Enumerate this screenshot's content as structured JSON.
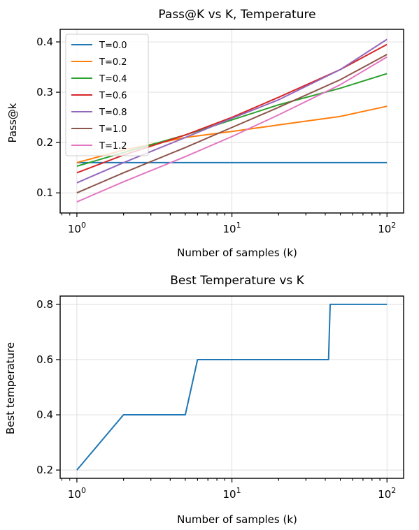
{
  "chart_data": [
    {
      "type": "line",
      "title": "Pass@K vs K, Temperature",
      "xlabel": "Number of samples (k)",
      "ylabel": "Pass@k",
      "xscale": "log",
      "xlim": [
        0.78,
        128
      ],
      "ylim": [
        0.06,
        0.425
      ],
      "grid": true,
      "legend_position": "top-left",
      "x_ticks": [
        {
          "base": "10",
          "exp": "0",
          "value": 1
        },
        {
          "base": "10",
          "exp": "1",
          "value": 10
        },
        {
          "base": "10",
          "exp": "2",
          "value": 100
        }
      ],
      "y_ticks": [
        {
          "label": "0.1",
          "value": 0.1
        },
        {
          "label": "0.2",
          "value": 0.2
        },
        {
          "label": "0.3",
          "value": 0.3
        },
        {
          "label": "0.4",
          "value": 0.4
        }
      ],
      "x": [
        1,
        2,
        5,
        10,
        20,
        50,
        100
      ],
      "series": [
        {
          "name": "T=0.0",
          "color": "#1f77b4",
          "values": [
            0.16,
            0.16,
            0.16,
            0.16,
            0.16,
            0.16,
            0.16
          ]
        },
        {
          "name": "T=0.2",
          "color": "#ff7f0e",
          "values": [
            0.16,
            0.185,
            0.21,
            0.222,
            0.235,
            0.252,
            0.272
          ]
        },
        {
          "name": "T=0.4",
          "color": "#2ca02c",
          "values": [
            0.153,
            0.18,
            0.215,
            0.245,
            0.275,
            0.308,
            0.337
          ]
        },
        {
          "name": "T=0.6",
          "color": "#d62728",
          "values": [
            0.14,
            0.175,
            0.215,
            0.25,
            0.29,
            0.345,
            0.395
          ]
        },
        {
          "name": "T=0.8",
          "color": "#9467bd",
          "values": [
            0.12,
            0.16,
            0.21,
            0.248,
            0.285,
            0.345,
            0.405
          ]
        },
        {
          "name": "T=1.0",
          "color": "#8c564b",
          "values": [
            0.1,
            0.14,
            0.19,
            0.23,
            0.27,
            0.325,
            0.375
          ]
        },
        {
          "name": "T=1.2",
          "color": "#e377c2",
          "values": [
            0.082,
            0.122,
            0.172,
            0.212,
            0.255,
            0.315,
            0.37
          ]
        }
      ]
    },
    {
      "type": "line",
      "title": "Best Temperature vs K",
      "xlabel": "Number of samples (k)",
      "ylabel": "Best temperature",
      "xscale": "log",
      "xlim": [
        0.78,
        128
      ],
      "ylim": [
        0.17,
        0.83
      ],
      "grid": true,
      "x_ticks": [
        {
          "base": "10",
          "exp": "0",
          "value": 1
        },
        {
          "base": "10",
          "exp": "1",
          "value": 10
        },
        {
          "base": "10",
          "exp": "2",
          "value": 100
        }
      ],
      "y_ticks": [
        {
          "label": "0.2",
          "value": 0.2
        },
        {
          "label": "0.4",
          "value": 0.4
        },
        {
          "label": "0.6",
          "value": 0.6
        },
        {
          "label": "0.8",
          "value": 0.8
        }
      ],
      "x": [
        1,
        2,
        5,
        6,
        42,
        43,
        100
      ],
      "series": [
        {
          "color": "#1f77b4",
          "values": [
            0.2,
            0.4,
            0.4,
            0.6,
            0.6,
            0.8,
            0.8
          ]
        }
      ]
    }
  ]
}
